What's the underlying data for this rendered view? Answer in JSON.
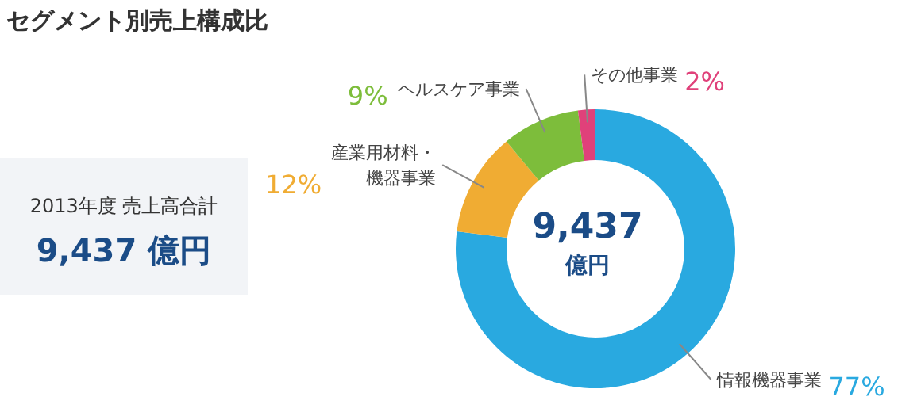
{
  "chart_data": {
    "type": "donut",
    "title": "セグメント別売上構成比",
    "categories": [
      "情報機器事業",
      "産業用材料・機器事業",
      "ヘルスケア事業",
      "その他事業"
    ],
    "values": [
      77,
      12,
      9,
      2
    ],
    "colors": [
      "#29a9e0",
      "#f0ac33",
      "#7dbd3b",
      "#e0417a"
    ],
    "value_labels": [
      "77%",
      "12%",
      "9%",
      "2%"
    ],
    "annotations": [
      "2013年度 売上高合計",
      "9,437 億円",
      "9,437 億円"
    ]
  }
}
